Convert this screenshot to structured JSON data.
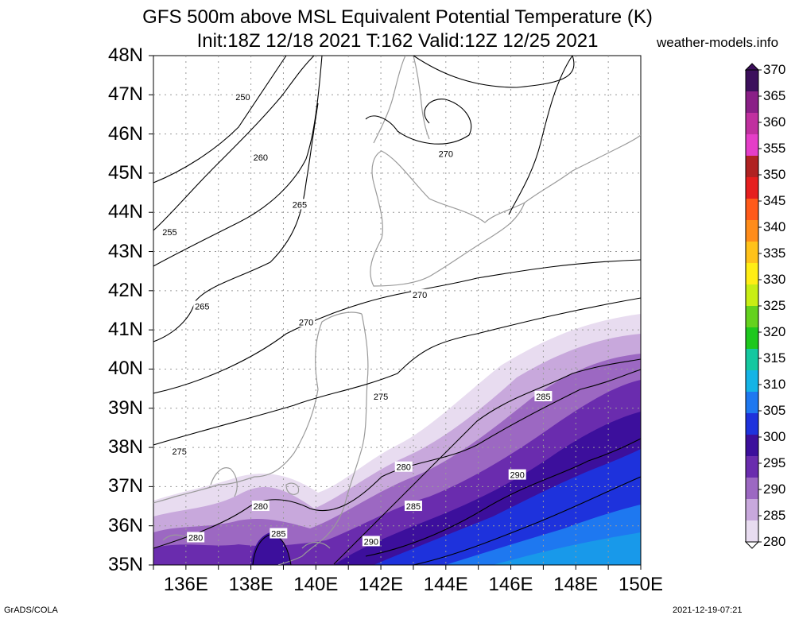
{
  "title": "GFS 500m above MSL Equivalent Potential Temperature (K)",
  "subtitle": "Init:18Z 12/18 2021 T:162 Valid:12Z 12/25 2021",
  "source": "weather-models.info",
  "footer_left": "GrADS/COLA",
  "footer_right": "2021-12-19-07:21",
  "map": {
    "lat_labels": [
      "48N",
      "47N",
      "46N",
      "45N",
      "44N",
      "43N",
      "42N",
      "41N",
      "40N",
      "39N",
      "38N",
      "37N",
      "36N",
      "35N"
    ],
    "lon_labels": [
      "136E",
      "138E",
      "140E",
      "142E",
      "144E",
      "146E",
      "148E",
      "150E"
    ],
    "lat_range": [
      35,
      48
    ],
    "lon_range": [
      135,
      150
    ],
    "contour_labels": [
      {
        "text": "250",
        "lon": 137.75,
        "lat": 46.95
      },
      {
        "text": "255",
        "lon": 135.5,
        "lat": 43.5
      },
      {
        "text": "260",
        "lon": 138.3,
        "lat": 45.4
      },
      {
        "text": "265",
        "lon": 139.5,
        "lat": 44.2
      },
      {
        "text": "265",
        "lon": 136.5,
        "lat": 41.6
      },
      {
        "text": "270",
        "lon": 144.0,
        "lat": 45.5
      },
      {
        "text": "270",
        "lon": 143.2,
        "lat": 41.9
      },
      {
        "text": "270",
        "lon": 139.7,
        "lat": 41.2
      },
      {
        "text": "275",
        "lon": 142.0,
        "lat": 39.3
      },
      {
        "text": "275",
        "lon": 135.8,
        "lat": 37.9
      },
      {
        "text": "280",
        "lon": 142.7,
        "lat": 37.5
      },
      {
        "text": "280",
        "lon": 138.3,
        "lat": 36.5
      },
      {
        "text": "280",
        "lon": 136.3,
        "lat": 35.7
      },
      {
        "text": "285",
        "lon": 147.0,
        "lat": 39.3
      },
      {
        "text": "285",
        "lon": 143.0,
        "lat": 36.5
      },
      {
        "text": "285",
        "lon": 138.85,
        "lat": 35.8
      },
      {
        "text": "290",
        "lon": 146.2,
        "lat": 37.3
      },
      {
        "text": "290",
        "lon": 141.7,
        "lat": 35.6
      }
    ]
  },
  "colorbar": {
    "levels": [
      "370",
      "365",
      "360",
      "355",
      "350",
      "345",
      "340",
      "335",
      "330",
      "325",
      "320",
      "315",
      "310",
      "305",
      "300",
      "295",
      "290",
      "285",
      "280"
    ],
    "colors": [
      "#3c0f5c",
      "#8a1f87",
      "#c0309f",
      "#e53ec8",
      "#b02222",
      "#e61f1f",
      "#ff5a1a",
      "#ff8c1a",
      "#ffc21a",
      "#ffee14",
      "#c8ee14",
      "#64d21e",
      "#1ec81e",
      "#14c8a0",
      "#14b4e6",
      "#1e78f0",
      "#1e32dc",
      "#3c0f9c",
      "#6a2cae",
      "#9c68c2",
      "#c8a8dc",
      "#e8dcf0"
    ]
  }
}
